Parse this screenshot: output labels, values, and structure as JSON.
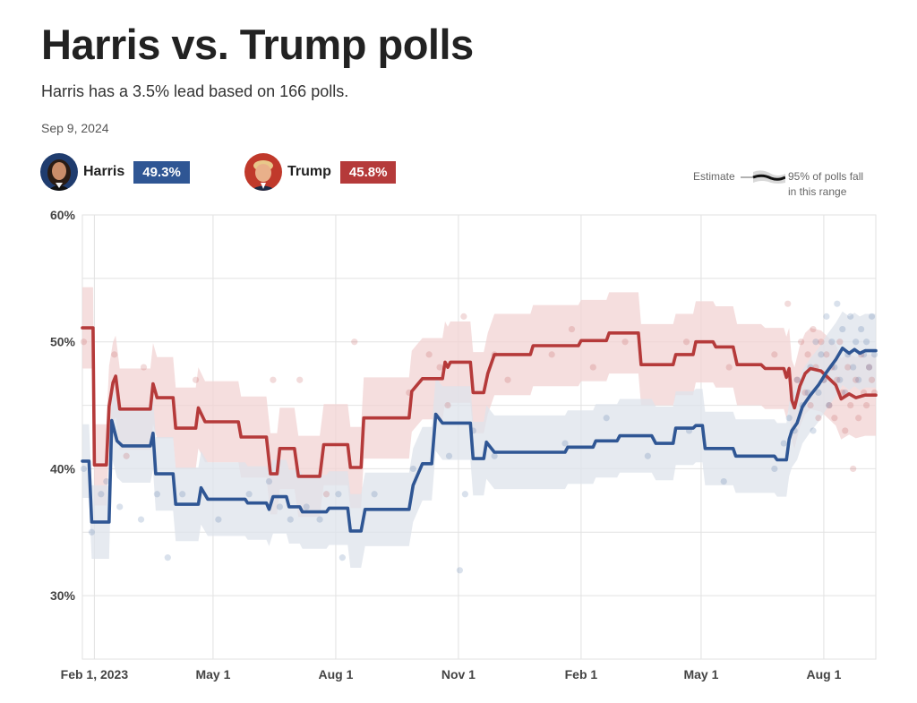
{
  "header": {
    "title": "Harris vs. Trump polls",
    "subtitle": "Harris has a 3.5% lead based on 166 polls.",
    "date": "Sep 9, 2024"
  },
  "candidates": [
    {
      "name": "Harris",
      "value_label": "49.3%",
      "color": "#2f5694"
    },
    {
      "name": "Trump",
      "value_label": "45.8%",
      "color": "#b53a3a"
    }
  ],
  "legend": {
    "estimate": "Estimate",
    "range_line1": "95% of polls fall",
    "range_line2": "in this range"
  },
  "chart_data": {
    "type": "line",
    "ylim": [
      25,
      60
    ],
    "yticks": [
      30,
      40,
      50,
      60
    ],
    "ytick_labels": [
      "30%",
      "40%",
      "50%",
      "60%"
    ],
    "xlim": [
      "2023-01-23",
      "2024-09-09"
    ],
    "xticks": [
      "2023-02-01",
      "2023-05-01",
      "2023-08-01",
      "2023-11-01",
      "2024-02-01",
      "2024-05-01",
      "2024-08-01"
    ],
    "xtick_labels": [
      "Feb 1, 2023",
      "May 1",
      "Aug 1",
      "Nov 1",
      "Feb 1",
      "May 1",
      "Aug 1"
    ],
    "series": [
      {
        "name": "Trump",
        "color": "#b53a3a",
        "band_color": "#f2d3d3",
        "band_halfwidth": 3.2,
        "points": [
          [
            "2023-01-23",
            51.1
          ],
          [
            "2023-01-31",
            51.1
          ],
          [
            "2023-02-01",
            40.3
          ],
          [
            "2023-02-10",
            40.3
          ],
          [
            "2023-02-12",
            44.9
          ],
          [
            "2023-02-15",
            46.8
          ],
          [
            "2023-02-17",
            47.3
          ],
          [
            "2023-02-20",
            44.7
          ],
          [
            "2023-03-15",
            44.7
          ],
          [
            "2023-03-17",
            46.7
          ],
          [
            "2023-03-20",
            45.6
          ],
          [
            "2023-04-01",
            45.6
          ],
          [
            "2023-04-03",
            43.2
          ],
          [
            "2023-04-18",
            43.2
          ],
          [
            "2023-04-20",
            44.8
          ],
          [
            "2023-04-25",
            43.7
          ],
          [
            "2023-05-20",
            43.7
          ],
          [
            "2023-05-22",
            42.5
          ],
          [
            "2023-06-10",
            42.5
          ],
          [
            "2023-06-13",
            39.6
          ],
          [
            "2023-06-18",
            39.6
          ],
          [
            "2023-06-20",
            41.6
          ],
          [
            "2023-07-01",
            41.6
          ],
          [
            "2023-07-04",
            39.4
          ],
          [
            "2023-07-20",
            39.4
          ],
          [
            "2023-07-23",
            41.9
          ],
          [
            "2023-08-10",
            41.9
          ],
          [
            "2023-08-12",
            40.1
          ],
          [
            "2023-08-20",
            40.1
          ],
          [
            "2023-08-22",
            44.0
          ],
          [
            "2023-09-25",
            44.0
          ],
          [
            "2023-09-27",
            46.1
          ],
          [
            "2023-10-05",
            47.1
          ],
          [
            "2023-10-20",
            47.1
          ],
          [
            "2023-10-22",
            48.4
          ],
          [
            "2023-10-24",
            48.0
          ],
          [
            "2023-10-26",
            48.4
          ],
          [
            "2023-11-10",
            48.4
          ],
          [
            "2023-11-12",
            46.0
          ],
          [
            "2023-11-20",
            46.0
          ],
          [
            "2023-11-23",
            47.5
          ],
          [
            "2023-11-28",
            49.0
          ],
          [
            "2023-12-25",
            49.0
          ],
          [
            "2023-12-27",
            49.7
          ],
          [
            "2024-01-30",
            49.7
          ],
          [
            "2024-02-01",
            50.1
          ],
          [
            "2024-02-20",
            50.1
          ],
          [
            "2024-02-22",
            50.7
          ],
          [
            "2024-03-15",
            50.7
          ],
          [
            "2024-03-17",
            48.2
          ],
          [
            "2024-04-10",
            48.2
          ],
          [
            "2024-04-12",
            49.0
          ],
          [
            "2024-04-25",
            49.0
          ],
          [
            "2024-04-27",
            50.0
          ],
          [
            "2024-05-10",
            50.0
          ],
          [
            "2024-05-12",
            49.6
          ],
          [
            "2024-05-25",
            49.6
          ],
          [
            "2024-05-28",
            48.2
          ],
          [
            "2024-06-15",
            48.2
          ],
          [
            "2024-06-18",
            47.9
          ],
          [
            "2024-07-02",
            47.9
          ],
          [
            "2024-07-04",
            47.2
          ],
          [
            "2024-07-06",
            47.9
          ],
          [
            "2024-07-08",
            45.4
          ],
          [
            "2024-07-10",
            44.8
          ],
          [
            "2024-07-14",
            46.5
          ],
          [
            "2024-07-18",
            47.5
          ],
          [
            "2024-07-22",
            47.9
          ],
          [
            "2024-07-30",
            47.7
          ],
          [
            "2024-08-05",
            47.1
          ],
          [
            "2024-08-10",
            46.6
          ],
          [
            "2024-08-14",
            45.5
          ],
          [
            "2024-08-20",
            45.9
          ],
          [
            "2024-08-25",
            45.6
          ],
          [
            "2024-09-01",
            45.8
          ],
          [
            "2024-09-09",
            45.8
          ]
        ],
        "polls": [
          [
            "2023-01-24",
            50
          ],
          [
            "2023-02-16",
            49
          ],
          [
            "2023-02-25",
            41
          ],
          [
            "2023-03-10",
            48
          ],
          [
            "2023-04-18",
            47
          ],
          [
            "2023-06-15",
            47
          ],
          [
            "2023-07-05",
            47
          ],
          [
            "2023-07-25",
            38
          ],
          [
            "2023-08-15",
            50
          ],
          [
            "2023-09-25",
            46
          ],
          [
            "2023-10-10",
            49
          ],
          [
            "2023-10-18",
            48
          ],
          [
            "2023-10-24",
            45
          ],
          [
            "2023-11-05",
            52
          ],
          [
            "2023-11-28",
            49
          ],
          [
            "2023-12-08",
            47
          ],
          [
            "2024-01-10",
            49
          ],
          [
            "2024-01-25",
            51
          ],
          [
            "2024-02-10",
            48
          ],
          [
            "2024-03-05",
            50
          ],
          [
            "2024-04-20",
            50
          ],
          [
            "2024-05-22",
            48
          ],
          [
            "2024-06-25",
            49
          ],
          [
            "2024-07-05",
            53
          ],
          [
            "2024-07-12",
            47
          ],
          [
            "2024-07-15",
            50
          ],
          [
            "2024-07-18",
            46
          ],
          [
            "2024-07-20",
            49
          ],
          [
            "2024-07-22",
            45
          ],
          [
            "2024-07-24",
            51
          ],
          [
            "2024-07-26",
            48
          ],
          [
            "2024-07-28",
            44
          ],
          [
            "2024-07-30",
            50
          ],
          [
            "2024-08-01",
            47
          ],
          [
            "2024-08-03",
            49
          ],
          [
            "2024-08-05",
            45
          ],
          [
            "2024-08-07",
            48
          ],
          [
            "2024-08-09",
            44
          ],
          [
            "2024-08-11",
            47
          ],
          [
            "2024-08-13",
            50
          ],
          [
            "2024-08-15",
            46
          ],
          [
            "2024-08-17",
            43
          ],
          [
            "2024-08-19",
            48
          ],
          [
            "2024-08-21",
            45
          ],
          [
            "2024-08-23",
            40
          ],
          [
            "2024-08-25",
            47
          ],
          [
            "2024-08-27",
            44
          ],
          [
            "2024-08-29",
            49
          ],
          [
            "2024-08-31",
            46
          ],
          [
            "2024-09-02",
            45
          ],
          [
            "2024-09-04",
            48
          ],
          [
            "2024-09-06",
            47
          ],
          [
            "2024-09-08",
            46
          ]
        ]
      },
      {
        "name": "Harris",
        "color": "#2f5694",
        "band_color": "#dde3eb",
        "band_halfwidth": 2.9,
        "points": [
          [
            "2023-01-23",
            40.6
          ],
          [
            "2023-01-28",
            40.6
          ],
          [
            "2023-01-30",
            35.8
          ],
          [
            "2023-02-12",
            35.8
          ],
          [
            "2023-02-14",
            43.8
          ],
          [
            "2023-02-18",
            42.2
          ],
          [
            "2023-02-22",
            41.8
          ],
          [
            "2023-03-15",
            41.8
          ],
          [
            "2023-03-17",
            42.8
          ],
          [
            "2023-03-19",
            39.6
          ],
          [
            "2023-04-01",
            39.6
          ],
          [
            "2023-04-03",
            37.2
          ],
          [
            "2023-04-20",
            37.2
          ],
          [
            "2023-04-22",
            38.5
          ],
          [
            "2023-04-27",
            37.6
          ],
          [
            "2023-05-25",
            37.6
          ],
          [
            "2023-05-27",
            37.3
          ],
          [
            "2023-06-10",
            37.3
          ],
          [
            "2023-06-12",
            36.8
          ],
          [
            "2023-06-15",
            37.8
          ],
          [
            "2023-06-25",
            37.8
          ],
          [
            "2023-06-27",
            37.0
          ],
          [
            "2023-07-05",
            37.0
          ],
          [
            "2023-07-07",
            36.6
          ],
          [
            "2023-07-25",
            36.6
          ],
          [
            "2023-07-27",
            36.9
          ],
          [
            "2023-08-10",
            36.9
          ],
          [
            "2023-08-12",
            35.1
          ],
          [
            "2023-08-20",
            35.1
          ],
          [
            "2023-08-23",
            36.8
          ],
          [
            "2023-09-25",
            36.8
          ],
          [
            "2023-09-28",
            38.7
          ],
          [
            "2023-10-05",
            40.4
          ],
          [
            "2023-10-12",
            40.4
          ],
          [
            "2023-10-15",
            44.3
          ],
          [
            "2023-10-20",
            43.6
          ],
          [
            "2023-11-10",
            43.6
          ],
          [
            "2023-11-12",
            40.8
          ],
          [
            "2023-11-20",
            40.8
          ],
          [
            "2023-11-22",
            42.1
          ],
          [
            "2023-11-28",
            41.3
          ],
          [
            "2024-01-20",
            41.3
          ],
          [
            "2024-01-22",
            41.7
          ],
          [
            "2024-02-10",
            41.7
          ],
          [
            "2024-02-12",
            42.2
          ],
          [
            "2024-02-28",
            42.2
          ],
          [
            "2024-03-01",
            42.6
          ],
          [
            "2024-03-25",
            42.6
          ],
          [
            "2024-03-28",
            42.0
          ],
          [
            "2024-04-10",
            42.0
          ],
          [
            "2024-04-12",
            43.2
          ],
          [
            "2024-04-25",
            43.2
          ],
          [
            "2024-04-27",
            43.4
          ],
          [
            "2024-05-02",
            43.4
          ],
          [
            "2024-05-04",
            41.6
          ],
          [
            "2024-05-25",
            41.6
          ],
          [
            "2024-05-27",
            41.0
          ],
          [
            "2024-06-25",
            41.0
          ],
          [
            "2024-06-27",
            40.7
          ],
          [
            "2024-07-04",
            40.7
          ],
          [
            "2024-07-06",
            42.3
          ],
          [
            "2024-07-08",
            43.0
          ],
          [
            "2024-07-12",
            43.6
          ],
          [
            "2024-07-16",
            44.9
          ],
          [
            "2024-07-22",
            45.8
          ],
          [
            "2024-07-28",
            46.6
          ],
          [
            "2024-08-03",
            47.6
          ],
          [
            "2024-08-10",
            48.6
          ],
          [
            "2024-08-15",
            49.5
          ],
          [
            "2024-08-20",
            49.1
          ],
          [
            "2024-08-24",
            49.4
          ],
          [
            "2024-08-28",
            49.1
          ],
          [
            "2024-09-01",
            49.3
          ],
          [
            "2024-09-09",
            49.3
          ]
        ],
        "polls": [
          [
            "2023-01-24",
            40
          ],
          [
            "2023-01-30",
            35
          ],
          [
            "2023-02-06",
            38
          ],
          [
            "2023-02-10",
            39
          ],
          [
            "2023-02-20",
            37
          ],
          [
            "2023-03-08",
            36
          ],
          [
            "2023-03-20",
            38
          ],
          [
            "2023-03-28",
            33
          ],
          [
            "2023-04-08",
            38
          ],
          [
            "2023-05-05",
            36
          ],
          [
            "2023-05-28",
            38
          ],
          [
            "2023-06-12",
            39
          ],
          [
            "2023-06-20",
            37
          ],
          [
            "2023-06-28",
            36
          ],
          [
            "2023-07-10",
            37
          ],
          [
            "2023-07-20",
            36
          ],
          [
            "2023-08-03",
            38
          ],
          [
            "2023-08-06",
            33
          ],
          [
            "2023-08-30",
            38
          ],
          [
            "2023-09-28",
            40
          ],
          [
            "2023-10-25",
            41
          ],
          [
            "2023-11-02",
            32
          ],
          [
            "2023-11-06",
            38
          ],
          [
            "2023-11-12",
            43
          ],
          [
            "2023-11-28",
            41
          ],
          [
            "2024-01-20",
            42
          ],
          [
            "2024-02-20",
            44
          ],
          [
            "2024-03-22",
            41
          ],
          [
            "2024-04-22",
            43
          ],
          [
            "2024-05-18",
            39
          ],
          [
            "2024-06-25",
            40
          ],
          [
            "2024-07-02",
            42
          ],
          [
            "2024-07-06",
            44
          ],
          [
            "2024-07-10",
            43
          ],
          [
            "2024-07-12",
            47
          ],
          [
            "2024-07-16",
            45
          ],
          [
            "2024-07-20",
            46
          ],
          [
            "2024-07-22",
            48
          ],
          [
            "2024-07-24",
            43
          ],
          [
            "2024-07-26",
            50
          ],
          [
            "2024-07-28",
            46
          ],
          [
            "2024-07-30",
            49
          ],
          [
            "2024-08-01",
            47
          ],
          [
            "2024-08-03",
            52
          ],
          [
            "2024-08-05",
            45
          ],
          [
            "2024-08-07",
            50
          ],
          [
            "2024-08-09",
            48
          ],
          [
            "2024-08-11",
            53
          ],
          [
            "2024-08-13",
            47
          ],
          [
            "2024-08-15",
            51
          ],
          [
            "2024-08-17",
            46
          ],
          [
            "2024-08-19",
            49
          ],
          [
            "2024-08-21",
            52
          ],
          [
            "2024-08-23",
            48
          ],
          [
            "2024-08-25",
            50
          ],
          [
            "2024-08-27",
            47
          ],
          [
            "2024-08-29",
            51
          ],
          [
            "2024-08-31",
            49
          ],
          [
            "2024-09-02",
            50
          ],
          [
            "2024-09-04",
            48
          ],
          [
            "2024-09-06",
            52
          ],
          [
            "2024-09-08",
            49
          ]
        ]
      }
    ]
  }
}
